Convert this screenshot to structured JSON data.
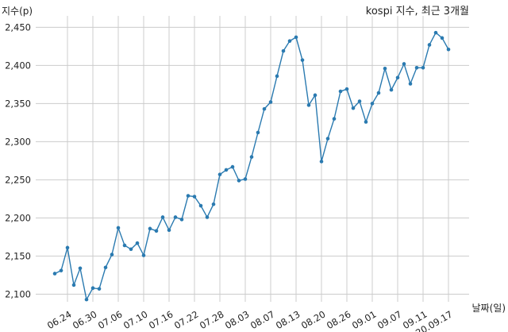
{
  "chart_data": {
    "type": "line",
    "title": "kospi 지수, 최근 3개월",
    "xlabel": "날짜(일)",
    "ylabel": "지수(p)",
    "ylim": [
      2090,
      2465
    ],
    "y_ticks": [
      2100,
      2150,
      2200,
      2250,
      2300,
      2350,
      2400,
      2450
    ],
    "y_tick_labels": [
      "2,100",
      "2,150",
      "2,200",
      "2,250",
      "2,300",
      "2,350",
      "2,400",
      "2,450"
    ],
    "x_tick_labels": [
      "06.24",
      "06.30",
      "07.06",
      "07.10",
      "07.16",
      "07.22",
      "07.28",
      "08.03",
      "08.07",
      "08.13",
      "08.20",
      "08.26",
      "09.01",
      "09.07",
      "09.11",
      "20.09.17"
    ],
    "x_tick_indices": [
      2,
      6,
      10,
      14,
      18,
      22,
      26,
      30,
      34,
      38,
      42,
      46,
      50,
      54,
      58,
      62
    ],
    "grid": true,
    "line_color": "#2a7ab0",
    "series": [
      {
        "values": [
          2127,
          2131,
          2161,
          2112,
          2134,
          2093,
          2108,
          2107,
          2135,
          2152,
          2187,
          2164,
          2159,
          2167,
          2151,
          2186,
          2183,
          2201,
          2184,
          2201,
          2198,
          2229,
          2228,
          2216,
          2201,
          2218,
          2257,
          2263,
          2267,
          2249,
          2251,
          2280,
          2312,
          2343,
          2352,
          2386,
          2419,
          2432,
          2437,
          2407,
          2348,
          2361,
          2274,
          2304,
          2330,
          2366,
          2369,
          2344,
          2353,
          2326,
          2350,
          2364,
          2396,
          2368,
          2384,
          2402,
          2376,
          2397,
          2397,
          2427,
          2443,
          2436,
          2421
        ]
      }
    ]
  }
}
